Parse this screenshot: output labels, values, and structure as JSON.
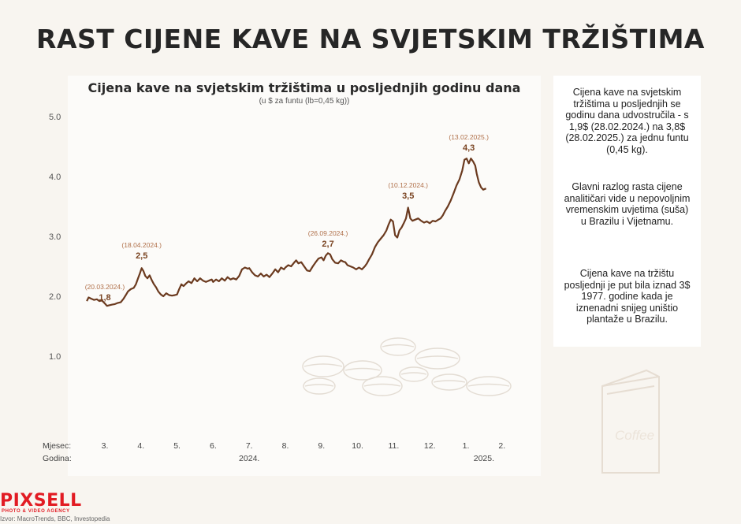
{
  "headline": "RAST CIJENE KAVE NA SVJETSKIM TRŽIŠTIMA",
  "info": {
    "p1": "Cijena kave na svjetskim tržištima u posljednjih se godinu dana udvostručila - s  1,9$ (28.02.2024.) na 3,8$ (28.02.2025.) za jednu funtu (0,45 kg).",
    "p2": "Glavni razlog rasta cijene analitičari vide u nepovoljnim vremenskim uvjetima (suša) u Brazilu i Vijetnamu.",
    "p3": "Cijena kave na tržištu posljednji je put bila iznad 3$ 1977. godine kada je iznenadni snijeg uništio plantaže u Brazilu."
  },
  "logo": {
    "name": "PIXSELL",
    "tagline": "PHOTO & VIDEO AGENCY"
  },
  "source": "Izvor: MacroTrends, BBC, Investopedia",
  "colors": {
    "line": "#6b3a1f",
    "annotation_date": "#b0704a",
    "annotation_value": "#7a4422",
    "background": "#f8f5f0",
    "panel": "#fcfbf9"
  },
  "chart_data": {
    "type": "line",
    "title": "Cijena kave na svjetskim tržištima u posljednjih godinu dana",
    "subtitle": "(u $ za funtu (lb=0,45 kg))",
    "yticks": [
      "5.0",
      "4.0",
      "3.0",
      "2.0",
      "1.0"
    ],
    "ylim": [
      0,
      5
    ],
    "grid": false,
    "xlim": [
      2.5,
      14.2
    ],
    "month_label": "Mjesec:",
    "year_label": "Godina:",
    "months": [
      {
        "x": 3,
        "label": "3."
      },
      {
        "x": 4,
        "label": "4."
      },
      {
        "x": 5,
        "label": "5."
      },
      {
        "x": 6,
        "label": "6."
      },
      {
        "x": 7,
        "label": "7."
      },
      {
        "x": 8,
        "label": "8."
      },
      {
        "x": 9,
        "label": "9."
      },
      {
        "x": 10,
        "label": "10."
      },
      {
        "x": 11,
        "label": "11."
      },
      {
        "x": 12,
        "label": "12."
      },
      {
        "x": 13,
        "label": "1."
      },
      {
        "x": 14,
        "label": "2."
      }
    ],
    "years": [
      {
        "x": 7,
        "label": "2024."
      },
      {
        "x": 13.5,
        "label": "2025."
      }
    ],
    "series": [
      {
        "values": [
          [
            2.5,
            1.92
          ],
          [
            2.55,
            1.98
          ],
          [
            2.62,
            1.96
          ],
          [
            2.7,
            1.94
          ],
          [
            2.78,
            1.95
          ],
          [
            2.85,
            1.92
          ],
          [
            2.92,
            1.93
          ],
          [
            3.0,
            1.88
          ],
          [
            3.06,
            1.84
          ],
          [
            3.12,
            1.85
          ],
          [
            3.2,
            1.86
          ],
          [
            3.28,
            1.87
          ],
          [
            3.36,
            1.89
          ],
          [
            3.44,
            1.9
          ],
          [
            3.52,
            1.96
          ],
          [
            3.58,
            2.02
          ],
          [
            3.64,
            2.08
          ],
          [
            3.72,
            2.12
          ],
          [
            3.8,
            2.14
          ],
          [
            3.86,
            2.2
          ],
          [
            3.92,
            2.3
          ],
          [
            3.97,
            2.38
          ],
          [
            4.02,
            2.47
          ],
          [
            4.07,
            2.42
          ],
          [
            4.12,
            2.34
          ],
          [
            4.18,
            2.3
          ],
          [
            4.24,
            2.35
          ],
          [
            4.3,
            2.27
          ],
          [
            4.36,
            2.2
          ],
          [
            4.42,
            2.15
          ],
          [
            4.48,
            2.08
          ],
          [
            4.55,
            2.03
          ],
          [
            4.62,
            2.0
          ],
          [
            4.7,
            2.05
          ],
          [
            4.78,
            2.02
          ],
          [
            4.86,
            2.01
          ],
          [
            4.94,
            2.02
          ],
          [
            5.0,
            2.03
          ],
          [
            5.06,
            2.12
          ],
          [
            5.12,
            2.2
          ],
          [
            5.18,
            2.17
          ],
          [
            5.26,
            2.22
          ],
          [
            5.32,
            2.25
          ],
          [
            5.4,
            2.22
          ],
          [
            5.48,
            2.3
          ],
          [
            5.56,
            2.25
          ],
          [
            5.64,
            2.3
          ],
          [
            5.72,
            2.26
          ],
          [
            5.8,
            2.24
          ],
          [
            5.88,
            2.26
          ],
          [
            5.96,
            2.28
          ],
          [
            6.0,
            2.24
          ],
          [
            6.08,
            2.28
          ],
          [
            6.16,
            2.25
          ],
          [
            6.24,
            2.3
          ],
          [
            6.32,
            2.26
          ],
          [
            6.4,
            2.32
          ],
          [
            6.48,
            2.28
          ],
          [
            6.56,
            2.3
          ],
          [
            6.64,
            2.28
          ],
          [
            6.72,
            2.34
          ],
          [
            6.8,
            2.45
          ],
          [
            6.88,
            2.48
          ],
          [
            6.96,
            2.46
          ],
          [
            7.0,
            2.47
          ],
          [
            7.08,
            2.4
          ],
          [
            7.16,
            2.35
          ],
          [
            7.24,
            2.33
          ],
          [
            7.32,
            2.38
          ],
          [
            7.4,
            2.33
          ],
          [
            7.48,
            2.36
          ],
          [
            7.56,
            2.32
          ],
          [
            7.64,
            2.38
          ],
          [
            7.72,
            2.45
          ],
          [
            7.8,
            2.4
          ],
          [
            7.88,
            2.48
          ],
          [
            7.96,
            2.45
          ],
          [
            8.0,
            2.48
          ],
          [
            8.08,
            2.52
          ],
          [
            8.16,
            2.5
          ],
          [
            8.24,
            2.56
          ],
          [
            8.3,
            2.6
          ],
          [
            8.36,
            2.55
          ],
          [
            8.44,
            2.57
          ],
          [
            8.52,
            2.5
          ],
          [
            8.6,
            2.43
          ],
          [
            8.68,
            2.42
          ],
          [
            8.76,
            2.5
          ],
          [
            8.84,
            2.57
          ],
          [
            8.92,
            2.63
          ],
          [
            9.0,
            2.65
          ],
          [
            9.06,
            2.6
          ],
          [
            9.12,
            2.68
          ],
          [
            9.18,
            2.72
          ],
          [
            9.24,
            2.7
          ],
          [
            9.3,
            2.62
          ],
          [
            9.38,
            2.56
          ],
          [
            9.46,
            2.55
          ],
          [
            9.54,
            2.6
          ],
          [
            9.6,
            2.58
          ],
          [
            9.66,
            2.57
          ],
          [
            9.72,
            2.52
          ],
          [
            9.8,
            2.5
          ],
          [
            9.88,
            2.48
          ],
          [
            9.96,
            2.45
          ],
          [
            10.04,
            2.48
          ],
          [
            10.12,
            2.45
          ],
          [
            10.2,
            2.5
          ],
          [
            10.26,
            2.55
          ],
          [
            10.32,
            2.62
          ],
          [
            10.4,
            2.7
          ],
          [
            10.48,
            2.82
          ],
          [
            10.56,
            2.9
          ],
          [
            10.64,
            2.96
          ],
          [
            10.72,
            3.02
          ],
          [
            10.8,
            3.1
          ],
          [
            10.86,
            3.2
          ],
          [
            10.92,
            3.28
          ],
          [
            10.98,
            3.25
          ],
          [
            11.04,
            3.02
          ],
          [
            11.1,
            2.98
          ],
          [
            11.16,
            3.1
          ],
          [
            11.22,
            3.15
          ],
          [
            11.28,
            3.22
          ],
          [
            11.34,
            3.3
          ],
          [
            11.4,
            3.48
          ],
          [
            11.46,
            3.3
          ],
          [
            11.52,
            3.26
          ],
          [
            11.6,
            3.28
          ],
          [
            11.68,
            3.3
          ],
          [
            11.76,
            3.26
          ],
          [
            11.84,
            3.23
          ],
          [
            11.92,
            3.25
          ],
          [
            12.0,
            3.22
          ],
          [
            12.08,
            3.26
          ],
          [
            12.16,
            3.25
          ],
          [
            12.24,
            3.28
          ],
          [
            12.3,
            3.3
          ],
          [
            12.36,
            3.35
          ],
          [
            12.42,
            3.42
          ],
          [
            12.5,
            3.5
          ],
          [
            12.58,
            3.6
          ],
          [
            12.66,
            3.72
          ],
          [
            12.74,
            3.85
          ],
          [
            12.82,
            3.95
          ],
          [
            12.9,
            4.1
          ],
          [
            12.96,
            4.28
          ],
          [
            13.02,
            4.3
          ],
          [
            13.08,
            4.22
          ],
          [
            13.14,
            4.3
          ],
          [
            13.2,
            4.25
          ],
          [
            13.26,
            4.18
          ],
          [
            13.3,
            4.05
          ],
          [
            13.36,
            3.9
          ],
          [
            13.42,
            3.82
          ],
          [
            13.48,
            3.78
          ],
          [
            13.56,
            3.8
          ]
        ]
      }
    ],
    "annotations": [
      {
        "x": 3.0,
        "y": 1.8,
        "date": "(20.03.2024.)",
        "value": "1,8"
      },
      {
        "x": 4.02,
        "y": 2.5,
        "date": "(18.04.2024.)",
        "value": "2,5"
      },
      {
        "x": 9.18,
        "y": 2.7,
        "date": "(26.09.2024.)",
        "value": "2,7"
      },
      {
        "x": 11.4,
        "y": 3.5,
        "date": "(10.12.2024.)",
        "value": "3,5"
      },
      {
        "x": 13.08,
        "y": 4.3,
        "date": "(13.02.2025.)",
        "value": "4,3"
      }
    ]
  }
}
